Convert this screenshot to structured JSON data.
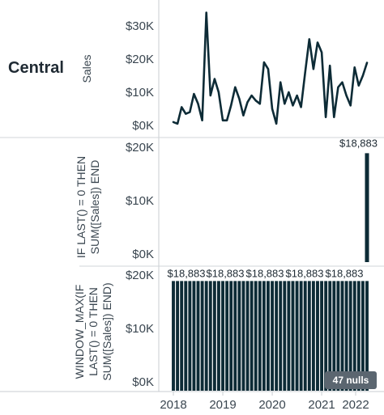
{
  "row_header": "Central",
  "x_axis": {
    "ticks": [
      "2018",
      "2019",
      "2020",
      "2021",
      "2022"
    ]
  },
  "null_indicator": "47 nulls",
  "chart_data": [
    {
      "type": "line",
      "ylabel": "Sales",
      "ylim": [
        0,
        35000
      ],
      "yticks": [
        "$0K",
        "$10K",
        "$20K",
        "$30K"
      ],
      "color": "#0d2b36",
      "series": [
        {
          "x": [
            "2018-01",
            "2018-02",
            "2018-03",
            "2018-04",
            "2018-05",
            "2018-06",
            "2018-07",
            "2018-08",
            "2018-09",
            "2018-10",
            "2018-11",
            "2018-12",
            "2019-01",
            "2019-02",
            "2019-03",
            "2019-04",
            "2019-05",
            "2019-06",
            "2019-07",
            "2019-08",
            "2019-09",
            "2019-10",
            "2019-11",
            "2019-12",
            "2020-01",
            "2020-02",
            "2020-03",
            "2020-04",
            "2020-05",
            "2020-06",
            "2020-07",
            "2020-08",
            "2020-09",
            "2020-10",
            "2020-11",
            "2020-12",
            "2021-01",
            "2021-02",
            "2021-03",
            "2021-04",
            "2021-05",
            "2021-06",
            "2021-07",
            "2021-08",
            "2021-09",
            "2021-10",
            "2021-11",
            "2021-12"
          ],
          "values": [
            1000,
            500,
            5500,
            3500,
            4000,
            9500,
            6500,
            1500,
            34000,
            9000,
            14000,
            10000,
            1500,
            1500,
            6000,
            11500,
            8000,
            3000,
            7000,
            9000,
            7500,
            6500,
            19000,
            17000,
            5000,
            500,
            13000,
            6500,
            10000,
            6000,
            9000,
            5500,
            16000,
            26000,
            17000,
            25000,
            22000,
            2500,
            18000,
            2500,
            11500,
            13000,
            9000,
            6000,
            17500,
            12000,
            15000,
            18883
          ]
        }
      ]
    },
    {
      "type": "bar",
      "ylabel_lines": [
        "IF LAST() = 0 THEN",
        "SUM([Sales]) END"
      ],
      "ylim": [
        0,
        20000
      ],
      "yticks": [
        "$0K",
        "$10K",
        "$20K"
      ],
      "value": 18883,
      "data_label": "$18,883",
      "color": "#0d2b36"
    },
    {
      "type": "bar",
      "ylabel_lines": [
        "WINDOW_MAX(IF",
        "LAST() = 0 THEN",
        "SUM([Sales]) END)"
      ],
      "ylim": [
        0,
        20000
      ],
      "yticks": [
        "$0K",
        "$10K",
        "$20K"
      ],
      "value": 18883,
      "data_labels": [
        "$18,883",
        "$18,883",
        "$18,883",
        "$18,883",
        "$18,883"
      ],
      "color": "#0d2b36"
    }
  ]
}
